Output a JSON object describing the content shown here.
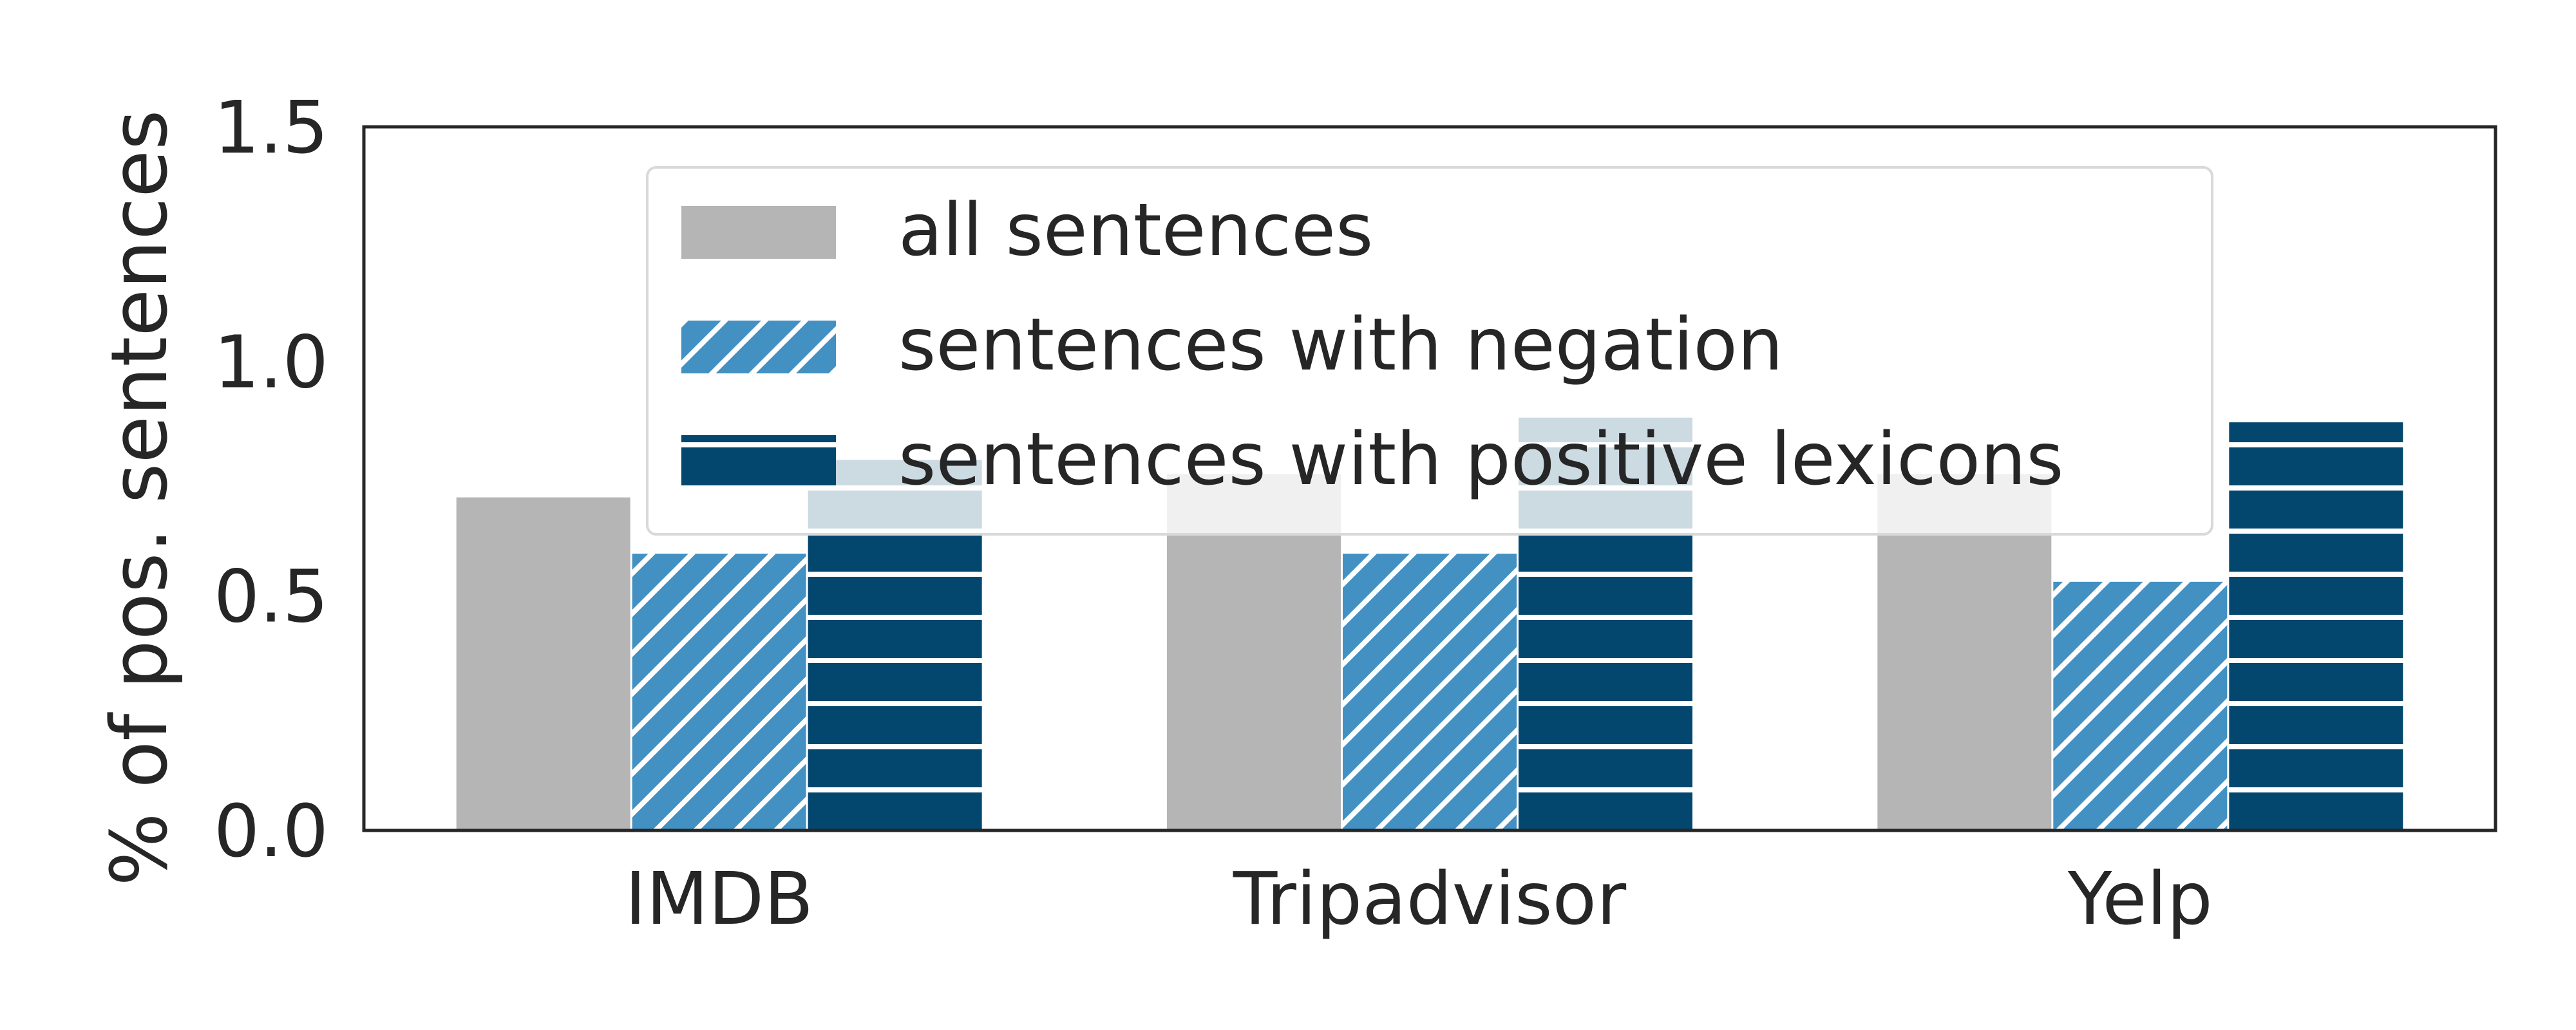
{
  "chart_data": {
    "type": "bar",
    "categories": [
      "IMDB",
      "Tripadvisor",
      "Yelp"
    ],
    "series": [
      {
        "name": "all sentences",
        "values": [
          0.71,
          0.76,
          0.76
        ],
        "color": "#b5b5b5",
        "hatch": "none"
      },
      {
        "name": "sentences with negation",
        "values": [
          0.59,
          0.59,
          0.53
        ],
        "color": "#4391c3",
        "hatch": "diagonal"
      },
      {
        "name": "sentences with positive lexicons",
        "values": [
          0.79,
          0.88,
          0.87
        ],
        "color": "#03466e",
        "hatch": "horizontal"
      }
    ],
    "ylabel": "% of pos. sentences",
    "xlabel": "",
    "ylim": [
      0,
      1.5
    ],
    "yticks": [
      "0.0",
      "0.5",
      "1.0",
      "1.5"
    ],
    "ytick_values": [
      0,
      0.5,
      1.0,
      1.5
    ],
    "grid": false,
    "legend_position": "upper-center"
  }
}
